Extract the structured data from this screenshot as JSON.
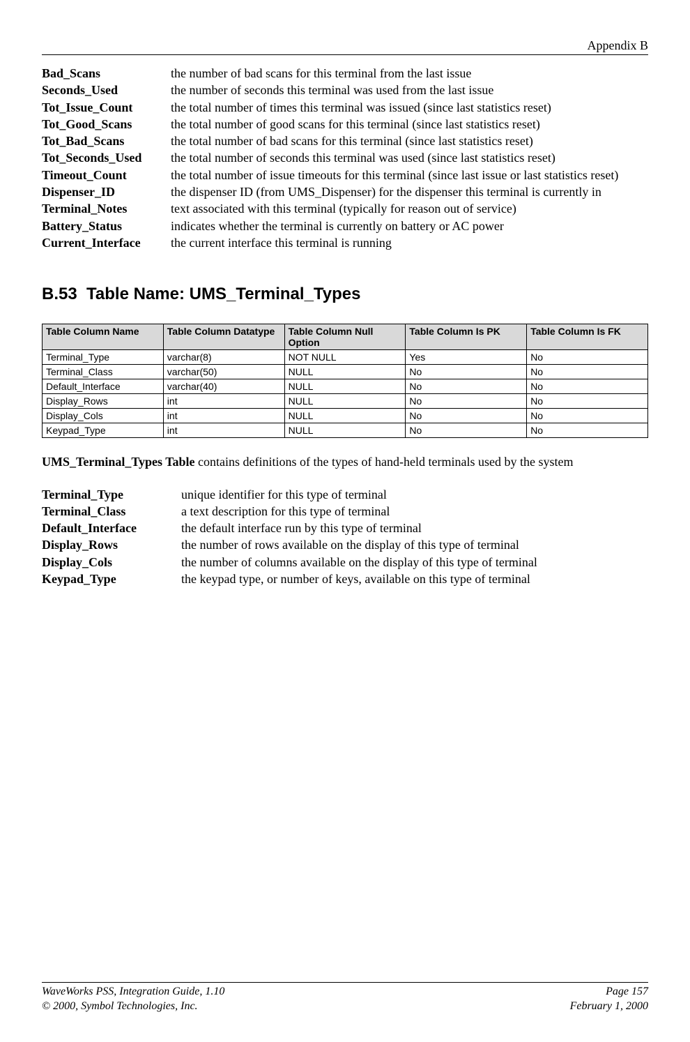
{
  "header": {
    "label": "Appendix B"
  },
  "defs1": [
    {
      "term": "Bad_Scans",
      "desc": "the number of bad scans for this terminal from the last issue"
    },
    {
      "term": "Seconds_Used",
      "desc": "the number of seconds this terminal was used from the last issue"
    },
    {
      "term": "Tot_Issue_Count",
      "desc": "the total number of times this terminal was issued (since last statistics reset)"
    },
    {
      "term": "Tot_Good_Scans",
      "desc": "the total number of good scans for this terminal (since last statistics reset)"
    },
    {
      "term": "Tot_Bad_Scans",
      "desc": "the total number of bad scans for this terminal (since last statistics reset)"
    },
    {
      "term": "Tot_Seconds_Used",
      "desc": "the total number of seconds this terminal was used (since last statistics reset)"
    },
    {
      "term": "Timeout_Count",
      "desc": "the total number of issue timeouts for this terminal (since last issue or last statistics reset)"
    },
    {
      "term": "Dispenser_ID",
      "desc": "the dispenser ID (from UMS_Dispenser) for the dispenser this terminal is currently in"
    },
    {
      "term": "Terminal_Notes",
      "desc": "text associated with this terminal (typically for reason out of service)"
    },
    {
      "term": "Battery_Status",
      "desc": "indicates whether the terminal is currently on battery or AC power"
    },
    {
      "term": "Current_Interface",
      "desc": "the current interface this terminal is running"
    }
  ],
  "section": {
    "number": "B.53",
    "title": "Table Name: UMS_Terminal_Types"
  },
  "table": {
    "columns": [
      "Table Column Name",
      "Table Column Datatype",
      "Table Column Null Option",
      "Table Column Is PK",
      "Table Column Is FK"
    ],
    "col_widths": [
      "20%",
      "20%",
      "20%",
      "20%",
      "20%"
    ],
    "header_bg": "#d9d9d9",
    "rows": [
      [
        "Terminal_Type",
        "varchar(8)",
        "NOT NULL",
        "Yes",
        "No"
      ],
      [
        "Terminal_Class",
        "varchar(50)",
        "NULL",
        "No",
        "No"
      ],
      [
        "Default_Interface",
        "varchar(40)",
        "NULL",
        "No",
        "No"
      ],
      [
        "Display_Rows",
        "int",
        "NULL",
        "No",
        "No"
      ],
      [
        "Display_Cols",
        "int",
        "NULL",
        "No",
        "No"
      ],
      [
        "Keypad_Type",
        "int",
        "NULL",
        "No",
        "No"
      ]
    ]
  },
  "table_desc": {
    "bold": "UMS_Terminal_Types Table",
    "rest": " contains definitions of the types of hand-held terminals used by the system"
  },
  "defs2": [
    {
      "term": "Terminal_Type",
      "desc": "unique identifier for this type of terminal"
    },
    {
      "term": "Terminal_Class",
      "desc": "a text description for this type of terminal"
    },
    {
      "term": "Default_Interface",
      "desc": "the default interface run by this type of terminal"
    },
    {
      "term": "Display_Rows",
      "desc": "the number of rows available on the display of this type of terminal"
    },
    {
      "term": "Display_Cols",
      "desc": "the number of columns available on the display of this type of terminal"
    },
    {
      "term": "Keypad_Type",
      "desc": "the keypad type, or number of keys, available on this type of terminal"
    }
  ],
  "footer": {
    "left1": "WaveWorks PSS, Integration Guide, 1.10",
    "right1": "Page 157",
    "left2": "© 2000, Symbol Technologies, Inc.",
    "right2": "February 1, 2000"
  }
}
